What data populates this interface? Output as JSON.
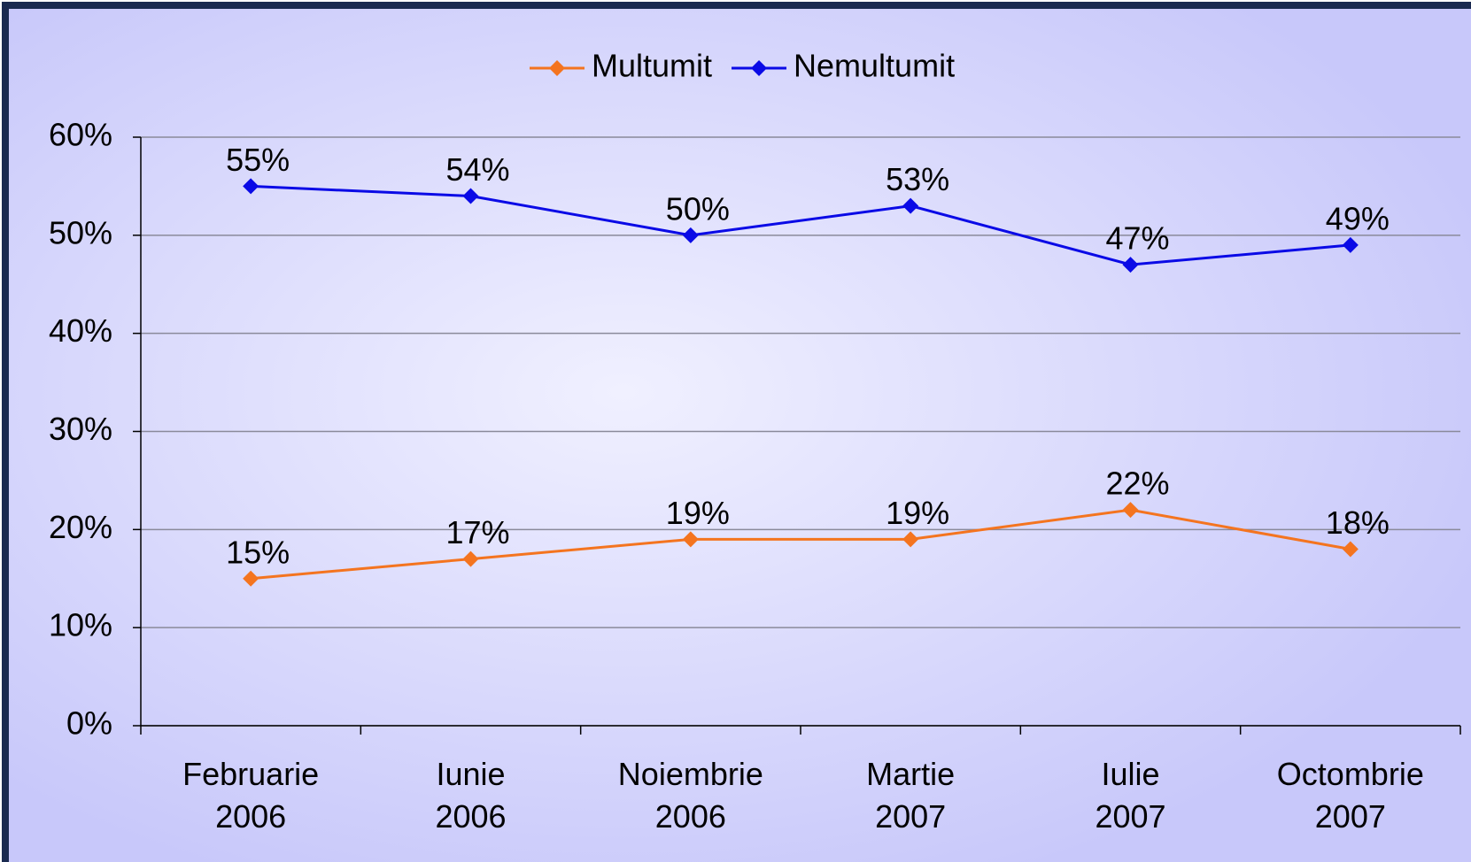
{
  "chart_data": {
    "type": "line",
    "categories": [
      "Februarie 2006",
      "Iunie 2006",
      "Noiembrie 2006",
      "Martie 2007",
      "Iulie 2007",
      "Octombrie 2007"
    ],
    "series": [
      {
        "name": "Multumit",
        "color": "#f4741f",
        "values": [
          15,
          17,
          19,
          19,
          22,
          18
        ],
        "value_labels": [
          "15%",
          "17%",
          "19%",
          "19%",
          "22%",
          "18%"
        ]
      },
      {
        "name": "Nemultumit",
        "color": "#0a0ae6",
        "values": [
          55,
          54,
          50,
          53,
          47,
          49
        ],
        "value_labels": [
          "55%",
          "54%",
          "50%",
          "53%",
          "47%",
          "49%"
        ]
      }
    ],
    "ylim": [
      0,
      60
    ],
    "yticks": [
      {
        "value": 0,
        "label": "0%"
      },
      {
        "value": 10,
        "label": "10%"
      },
      {
        "value": 20,
        "label": "20%"
      },
      {
        "value": 30,
        "label": "30%"
      },
      {
        "value": 40,
        "label": "40%"
      },
      {
        "value": 50,
        "label": "50%"
      },
      {
        "value": 60,
        "label": "60%"
      }
    ],
    "grid": true,
    "legend": "top"
  }
}
